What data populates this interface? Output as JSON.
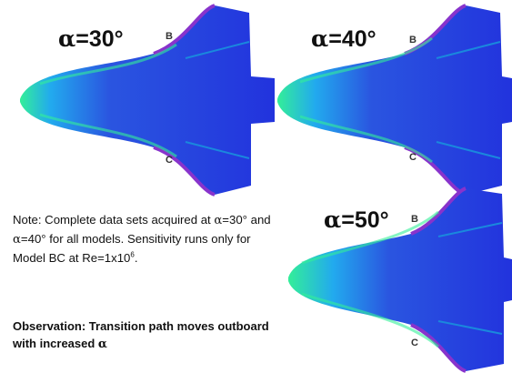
{
  "panels": [
    {
      "alpha_symbol": "α",
      "alpha_text": "=30°",
      "edge_top": "B",
      "edge_bottom": "C"
    },
    {
      "alpha_symbol": "α",
      "alpha_text": "=40°",
      "edge_top": "B",
      "edge_bottom": "C"
    },
    {
      "alpha_symbol": "α",
      "alpha_text": "=50°",
      "edge_top": "B",
      "edge_bottom": "C"
    }
  ],
  "note": {
    "p1": "Note: Complete data sets acquired at ",
    "alpha1": "α",
    "p2": "=30° and ",
    "alpha2": "α",
    "p3": "=40° for all models. Sensitivity runs only for Model BC at Re=1x10",
    "exponent": "6",
    "p4": "."
  },
  "observation": {
    "text": "Observation: Transition path moves outboard with increased ",
    "alpha": "α"
  },
  "colors": {
    "laminar": "#2233dd",
    "transitional": "#22aaee",
    "turbulent": "#33ee99",
    "edge": "#8833cc"
  }
}
